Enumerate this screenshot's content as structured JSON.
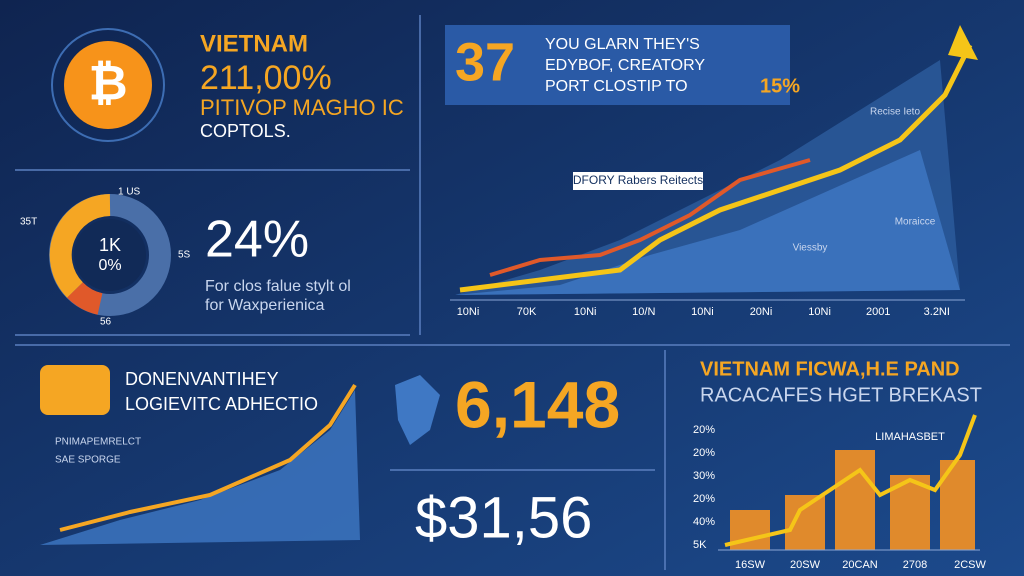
{
  "crypto_panel": {
    "country": "VIETNAM",
    "headline": "211,00%",
    "subtitle": "PITIVOP MAGHO IC",
    "caption": "COPTOLS.",
    "icon": "₿"
  },
  "donut_panel": {
    "center_top": "1K",
    "center_bottom": "0%",
    "labels": [
      "1 US",
      "35T",
      "5S",
      "56"
    ],
    "big_value": "24%",
    "line1": "For clos falue stylt ol",
    "line2": "for Waxperienica"
  },
  "growth_panel": {
    "number": "37",
    "lines": [
      "YOU GLARN THEY'S",
      "EDYBOF, CREATORY",
      "PORT CLOSTIP TO"
    ],
    "accent": "15%",
    "chart_label": "DFORY Rabers Reitects",
    "annotations": [
      "Recise Ieto",
      "Moraicce",
      "Viessby"
    ],
    "x_labels": [
      "10Ni",
      "70K",
      "10Ni",
      "10/N",
      "10Ni",
      "20Ni",
      "10Ni",
      "2001",
      "3.2NI"
    ]
  },
  "trend_panel": {
    "title1": "DONENVANTIHEY",
    "title2": "LOGIEVITC ADHECTIO",
    "legend": [
      "PNIMAPEMRELCT",
      "SAE SPORGE"
    ]
  },
  "stats_panel": {
    "value1": "6,148",
    "value2": "$31,56"
  },
  "market_panel": {
    "title1": "VIETNAM FICWA,H.E PAND",
    "title2": "RACACAFES HGET BREKAST",
    "annotation": "LIMAHASBET",
    "y_labels": [
      "20%",
      "20%",
      "30%",
      "20%",
      "40%",
      "5K"
    ],
    "x_labels": [
      "16SW",
      "20SW",
      "20CAN",
      "2708",
      "2CSW"
    ]
  }
}
